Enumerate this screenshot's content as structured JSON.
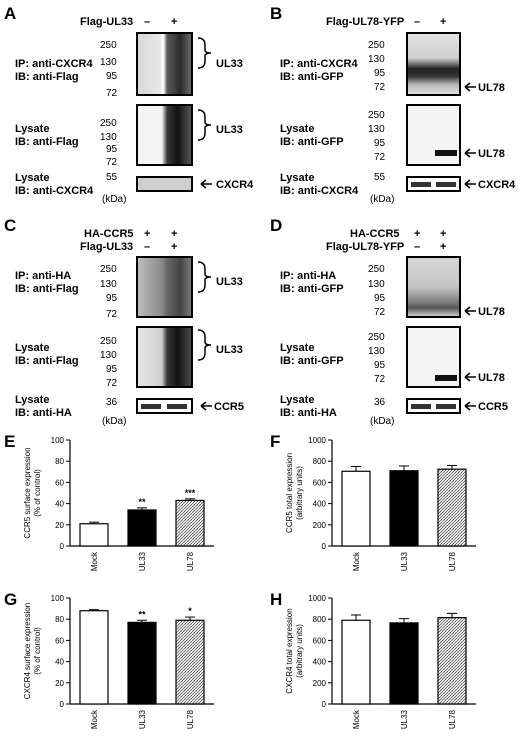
{
  "panels": {
    "A": {
      "letter": "A",
      "header": [
        {
          "label": "Flag-UL33",
          "signs": [
            "–",
            "+"
          ]
        }
      ],
      "blots": [
        {
          "lines": [
            "IP: anti-CXCR4",
            "IB: anti-Flag"
          ],
          "markers": [
            "250",
            "130",
            "95",
            "72"
          ],
          "target": "UL33"
        },
        {
          "lines": [
            "Lysate",
            "IB: anti-Flag"
          ],
          "markers": [
            "250",
            "130",
            "95",
            "72"
          ],
          "target": "UL33"
        },
        {
          "lines": [
            "Lysate",
            "IB: anti-CXCR4"
          ],
          "markers": [
            "55"
          ],
          "target": "CXCR4"
        }
      ],
      "unit": "(kDa)"
    },
    "B": {
      "letter": "B",
      "header": [
        {
          "label": "Flag-UL78-YFP",
          "signs": [
            "–",
            "+"
          ]
        }
      ],
      "blots": [
        {
          "lines": [
            "IP: anti-CXCR4",
            "IB: anti-GFP"
          ],
          "markers": [
            "250",
            "130",
            "95",
            "72"
          ],
          "target": "UL78"
        },
        {
          "lines": [
            "Lysate",
            "IB: anti-GFP"
          ],
          "markers": [
            "250",
            "130",
            "95",
            "72"
          ],
          "target": "UL78"
        },
        {
          "lines": [
            "Lysate",
            "IB: anti-CXCR4"
          ],
          "markers": [
            "55"
          ],
          "target": "CXCR4"
        }
      ],
      "unit": "(kDa)"
    },
    "C": {
      "letter": "C",
      "header": [
        {
          "label": "HA-CCR5",
          "signs": [
            "+",
            "+"
          ]
        },
        {
          "label": "Flag-UL33",
          "signs": [
            "–",
            "+"
          ]
        }
      ],
      "blots": [
        {
          "lines": [
            "IP: anti-HA",
            "IB: anti-Flag"
          ],
          "markers": [
            "250",
            "130",
            "95",
            "72"
          ],
          "target": "UL33"
        },
        {
          "lines": [
            "Lysate",
            "IB: anti-Flag"
          ],
          "markers": [
            "250",
            "130",
            "95",
            "72"
          ],
          "target": "UL33"
        },
        {
          "lines": [
            "Lysate",
            "IB: anti-HA"
          ],
          "markers": [
            "36"
          ],
          "target": "CCR5"
        }
      ],
      "unit": "(kDa)"
    },
    "D": {
      "letter": "D",
      "header": [
        {
          "label": "HA-CCR5",
          "signs": [
            "+",
            "+"
          ]
        },
        {
          "label": "Flag-UL78-YFP",
          "signs": [
            "–",
            "+"
          ]
        }
      ],
      "blots": [
        {
          "lines": [
            "IP: anti-HA",
            "IB: anti-GFP"
          ],
          "markers": [
            "250",
            "130",
            "95",
            "72"
          ],
          "target": "UL78"
        },
        {
          "lines": [
            "Lysate",
            "IB: anti-GFP"
          ],
          "markers": [
            "250",
            "130",
            "95",
            "72"
          ],
          "target": "UL78"
        },
        {
          "lines": [
            "Lysate",
            "IB: anti-HA"
          ],
          "markers": [
            "36"
          ],
          "target": "CCR5"
        }
      ],
      "unit": "(kDa)"
    }
  },
  "chart_data": [
    {
      "panel": "E",
      "type": "bar",
      "categories": [
        "Mock",
        "UL33",
        "UL78"
      ],
      "values": [
        21,
        34,
        43
      ],
      "errors": [
        1.5,
        2,
        1.5
      ],
      "ylabel": "CCR5 surface expression\n(% of control)",
      "ylim": [
        0,
        100
      ],
      "yticks": [
        0,
        20,
        40,
        60,
        80,
        100
      ],
      "significance": [
        "",
        "**",
        "***"
      ],
      "fills": [
        "white",
        "black",
        "hatched"
      ]
    },
    {
      "panel": "F",
      "type": "bar",
      "categories": [
        "Mock",
        "UL33",
        "UL78"
      ],
      "values": [
        705,
        710,
        725
      ],
      "errors": [
        45,
        45,
        35
      ],
      "ylabel": "CCR5 total expression\n(arbitrary units)",
      "ylim": [
        0,
        1000
      ],
      "yticks": [
        0,
        200,
        400,
        600,
        800,
        1000
      ],
      "significance": [
        "",
        "",
        ""
      ],
      "fills": [
        "white",
        "black",
        "hatched"
      ]
    },
    {
      "panel": "G",
      "type": "bar",
      "categories": [
        "Mock",
        "UL33",
        "UL78"
      ],
      "values": [
        88,
        77,
        79
      ],
      "errors": [
        1,
        2,
        3
      ],
      "ylabel": "CXCR4 surface expression\n(% of control)",
      "ylim": [
        0,
        100
      ],
      "yticks": [
        0,
        20,
        40,
        60,
        80,
        100
      ],
      "significance": [
        "",
        "**",
        "*"
      ],
      "fills": [
        "white",
        "black",
        "hatched"
      ]
    },
    {
      "panel": "H",
      "type": "bar",
      "categories": [
        "Mock",
        "UL33",
        "UL78"
      ],
      "values": [
        790,
        765,
        815
      ],
      "errors": [
        50,
        40,
        40
      ],
      "ylabel": "CXCR4 total expression\n(arbitrary units)",
      "ylim": [
        0,
        1000
      ],
      "yticks": [
        0,
        200,
        400,
        600,
        800,
        1000
      ],
      "significance": [
        "",
        "",
        ""
      ],
      "fills": [
        "white",
        "black",
        "hatched"
      ]
    }
  ]
}
